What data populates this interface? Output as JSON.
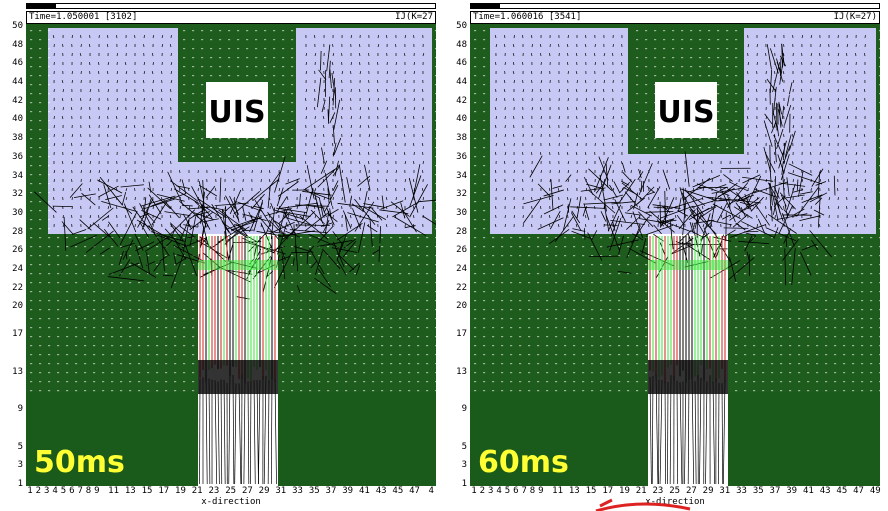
{
  "panels": [
    {
      "id": "left",
      "time_label": "Time=1.050001 [3102]",
      "corner_label": "IJ(K=27",
      "logo_text": "UIS",
      "stamp": "50ms",
      "progress": 0.07
    },
    {
      "id": "right",
      "time_label": "Time=1.060016 [3541]",
      "corner_label": "IJ(K=27)",
      "logo_text": "UIS",
      "stamp": "60ms",
      "progress": 0.07
    }
  ],
  "y_ticks": [
    "1",
    "3",
    "5",
    "9",
    "13",
    "17",
    "20",
    "22",
    "24",
    "26",
    "28",
    "30",
    "32",
    "34",
    "36",
    "38",
    "40",
    "42",
    "44",
    "46",
    "48",
    "50"
  ],
  "x_ticks_left": [
    "1",
    "2",
    "3",
    "4",
    "5",
    "6",
    "7",
    "8",
    "9",
    "11",
    "13",
    "15",
    "17",
    "19",
    "21",
    "23",
    "25",
    "27",
    "29",
    "31",
    "33",
    "35",
    "37",
    "39",
    "41",
    "43",
    "45",
    "47",
    "4"
  ],
  "x_ticks_right": [
    "1",
    "2",
    "3",
    "4",
    "5",
    "6",
    "7",
    "8",
    "9",
    "11",
    "13",
    "15",
    "17",
    "19",
    "21",
    "23",
    "25",
    "27",
    "29",
    "31",
    "33",
    "35",
    "37",
    "39",
    "41",
    "43",
    "45",
    "47",
    "49"
  ],
  "x_label": "x-direction",
  "colors": {
    "solid_green": "#1d5c1d",
    "fluid_lavender": "#c8c8f4",
    "highlight_green": "#39e639",
    "highlight_red": "#cc2222",
    "stamp_yellow": "#ffff33",
    "annotation_red": "#dd2222"
  }
}
